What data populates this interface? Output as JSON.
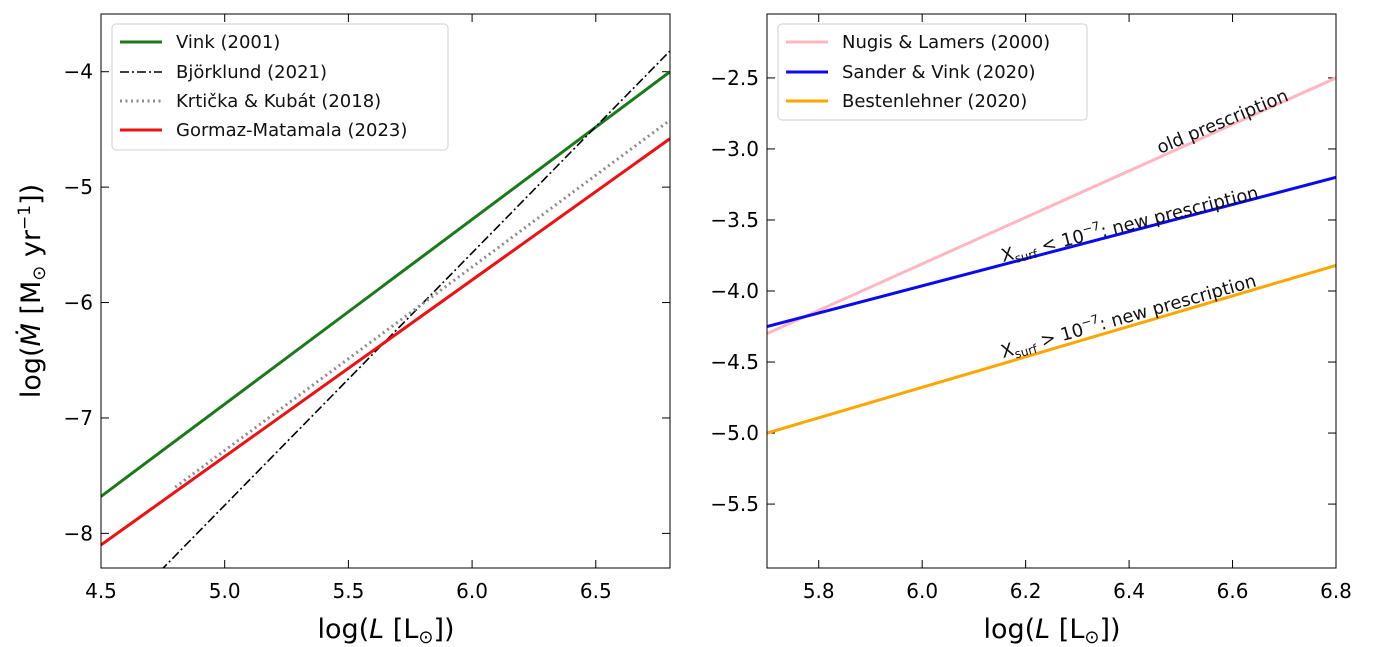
{
  "chart_data": [
    {
      "type": "line",
      "xlabel_prefix": "log(",
      "xlabel_var": "L",
      "xlabel_unit": "[L",
      "xlabel_sub": "⊙",
      "xlabel_close": "])",
      "ylabel_prefix": "log(",
      "ylabel_var": "Ṁ",
      "ylabel_unit": "[M",
      "ylabel_sub": "⊙",
      "ylabel_rest": " yr",
      "ylabel_sup": "−1",
      "ylabel_close": "])",
      "xlim": [
        4.5,
        6.8
      ],
      "ylim": [
        -8.3,
        -3.5
      ],
      "xticks": [
        4.5,
        5.0,
        5.5,
        6.0,
        6.5
      ],
      "xtick_labels": [
        "4.5",
        "5.0",
        "5.5",
        "6.0",
        "6.5"
      ],
      "yticks": [
        -8,
        -7,
        -6,
        -5,
        -4
      ],
      "ytick_labels": [
        "−8",
        "−7",
        "−6",
        "−5",
        "−4"
      ],
      "legend_position": "upper-left",
      "series": [
        {
          "name": "Vink (2001)",
          "color": "#1a7a1a",
          "style": "solid",
          "x": [
            4.5,
            6.8
          ],
          "y": [
            -7.68,
            -4.0
          ]
        },
        {
          "name": "Björklund (2021)",
          "color": "#000000",
          "style": "dashdot",
          "x": [
            4.5,
            6.8
          ],
          "y": [
            -8.85,
            -3.82
          ]
        },
        {
          "name": "Krtička & Kubát (2018)",
          "color": "#8c8c8c",
          "style": "dotted",
          "x": [
            4.8,
            6.8
          ],
          "y": [
            -7.6,
            -4.42
          ]
        },
        {
          "name": "Gormaz-Matamala (2023)",
          "color": "#ee1111",
          "style": "solid",
          "x": [
            4.5,
            6.8
          ],
          "y": [
            -8.1,
            -4.58
          ]
        }
      ]
    },
    {
      "type": "line",
      "xlabel_prefix": "log(",
      "xlabel_var": "L",
      "xlabel_unit": "[L",
      "xlabel_sub": "⊙",
      "xlabel_close": "])",
      "xlim": [
        5.7,
        6.8
      ],
      "ylim": [
        -5.95,
        -2.05
      ],
      "xticks": [
        5.8,
        6.0,
        6.2,
        6.4,
        6.6,
        6.8
      ],
      "xtick_labels": [
        "5.8",
        "6.0",
        "6.2",
        "6.4",
        "6.6",
        "6.8"
      ],
      "yticks": [
        -5.5,
        -5.0,
        -4.5,
        -4.0,
        -3.5,
        -3.0,
        -2.5
      ],
      "ytick_labels": [
        "−5.5",
        "−5.0",
        "−4.5",
        "−4.0",
        "−3.5",
        "−3.0",
        "−2.5"
      ],
      "legend_position": "upper-left",
      "series": [
        {
          "name": "Nugis & Lamers (2000)",
          "color": "#ffb6c1",
          "style": "solid",
          "x": [
            5.7,
            6.8
          ],
          "y": [
            -4.3,
            -2.5
          ]
        },
        {
          "name": "Sander & Vink (2020)",
          "color": "#0a0af0",
          "style": "solid",
          "x": [
            5.7,
            6.8
          ],
          "y": [
            -4.25,
            -3.2
          ]
        },
        {
          "name": "Bestenlehner (2020)",
          "color": "#ffa500",
          "style": "solid",
          "x": [
            5.7,
            6.8
          ],
          "y": [
            -5.0,
            -3.82
          ]
        }
      ],
      "annotations": {
        "old": "old prescription",
        "low_prefix": "X",
        "low_sub": "surf",
        "low_op": " < 10",
        "low_sup": "−7",
        "low_rest": ": new prescription",
        "high_prefix": "X",
        "high_sub": "surf",
        "high_op": " > 10",
        "high_sup": "−7",
        "high_rest": ": new prescription"
      }
    }
  ]
}
